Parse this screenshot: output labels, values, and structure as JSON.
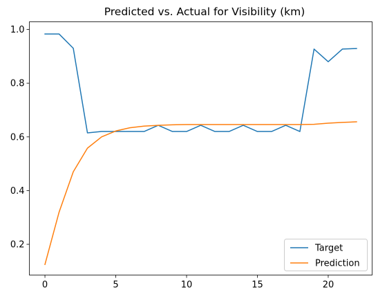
{
  "chart_data": {
    "type": "line",
    "title": "Predicted vs. Actual for Visibility (km)",
    "xlabel": "",
    "ylabel": "",
    "xlim": [
      -1.1,
      23.1
    ],
    "ylim": [
      0.0855,
      1.0285
    ],
    "x_ticks": [
      0,
      5,
      10,
      15,
      20
    ],
    "y_ticks": [
      0.2,
      0.4,
      0.6,
      0.8,
      1.0
    ],
    "x_tick_labels": [
      "0",
      "5",
      "10",
      "15",
      "20"
    ],
    "y_tick_labels": [
      "0.2",
      "0.4",
      "0.6",
      "0.8",
      "1.0"
    ],
    "grid": false,
    "legend_position": "lower-right",
    "x": [
      0,
      1,
      2,
      3,
      4,
      5,
      6,
      7,
      8,
      9,
      10,
      11,
      12,
      13,
      14,
      15,
      16,
      17,
      18,
      19,
      20,
      21,
      22
    ],
    "series": [
      {
        "name": "Target",
        "color": "#1f77b4",
        "values": [
          0.983,
          0.983,
          0.93,
          0.615,
          0.62,
          0.62,
          0.62,
          0.62,
          0.643,
          0.62,
          0.62,
          0.643,
          0.62,
          0.62,
          0.643,
          0.62,
          0.62,
          0.643,
          0.62,
          0.927,
          0.88,
          0.927,
          0.929
        ]
      },
      {
        "name": "Prediction",
        "color": "#ff7f0e",
        "values": [
          0.125,
          0.32,
          0.47,
          0.558,
          0.6,
          0.622,
          0.634,
          0.64,
          0.643,
          0.645,
          0.646,
          0.646,
          0.646,
          0.646,
          0.646,
          0.646,
          0.646,
          0.646,
          0.646,
          0.647,
          0.651,
          0.654,
          0.656
        ]
      }
    ]
  }
}
